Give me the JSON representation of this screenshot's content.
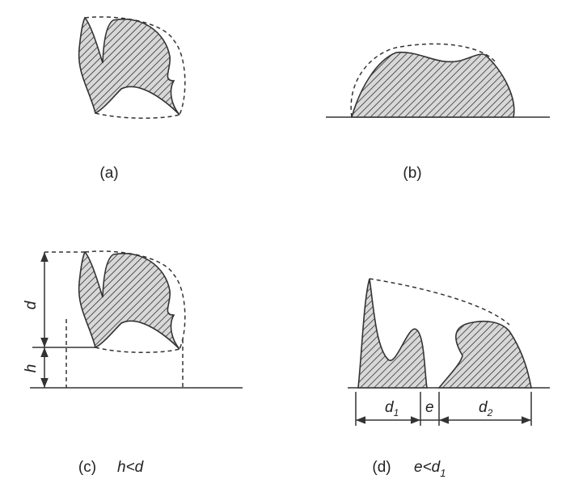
{
  "panels": [
    {
      "label": "(a)"
    },
    {
      "label": "(b)"
    },
    {
      "label": "(c)",
      "condition": "h<d",
      "dims": [
        "d",
        "h"
      ]
    },
    {
      "label": "(d)",
      "condition": {
        "text": "e<d",
        "sub": "1"
      },
      "dims": [
        {
          "base": "d",
          "sub": "1"
        },
        {
          "base": "e"
        },
        {
          "base": "d",
          "sub": "2"
        }
      ]
    }
  ]
}
